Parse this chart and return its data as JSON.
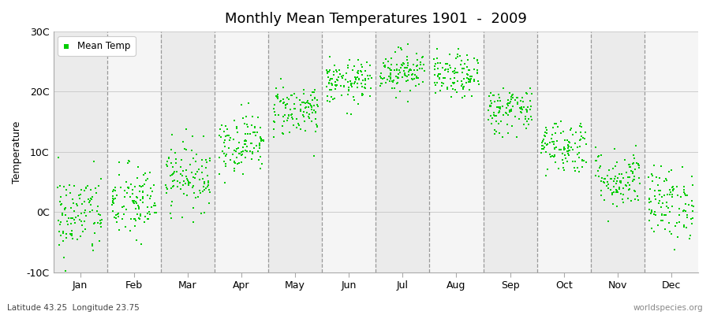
{
  "title": "Monthly Mean Temperatures 1901  -  2009",
  "ylabel": "Temperature",
  "xlabel_bottom_left": "Latitude 43.25  Longitude 23.75",
  "xlabel_bottom_right": "worldspecies.org",
  "legend_label": "Mean Temp",
  "dot_color": "#00CC00",
  "background_color": "#FFFFFF",
  "plot_bg_color": "#F0F0F0",
  "ylim": [
    -10,
    30
  ],
  "yticks": [
    -10,
    0,
    10,
    20,
    30
  ],
  "ytick_labels": [
    "-10C",
    "0C",
    "10C",
    "20C",
    "30C"
  ],
  "month_names": [
    "Jan",
    "Feb",
    "Mar",
    "Apr",
    "May",
    "Jun",
    "Jul",
    "Aug",
    "Sep",
    "Oct",
    "Nov",
    "Dec"
  ],
  "monthly_mean_temps": [
    -0.5,
    1.5,
    6.0,
    11.5,
    17.0,
    21.5,
    23.5,
    22.5,
    17.0,
    11.0,
    5.5,
    1.5
  ],
  "monthly_std_temps": [
    3.5,
    3.2,
    2.8,
    2.5,
    2.2,
    1.8,
    1.8,
    1.8,
    2.0,
    2.3,
    2.5,
    3.0
  ],
  "n_years": 109,
  "seed": 42,
  "vline_color": "#999999",
  "band_colors": [
    "#EBEBEB",
    "#F5F5F5"
  ],
  "hline_color": "#CCCCCC"
}
